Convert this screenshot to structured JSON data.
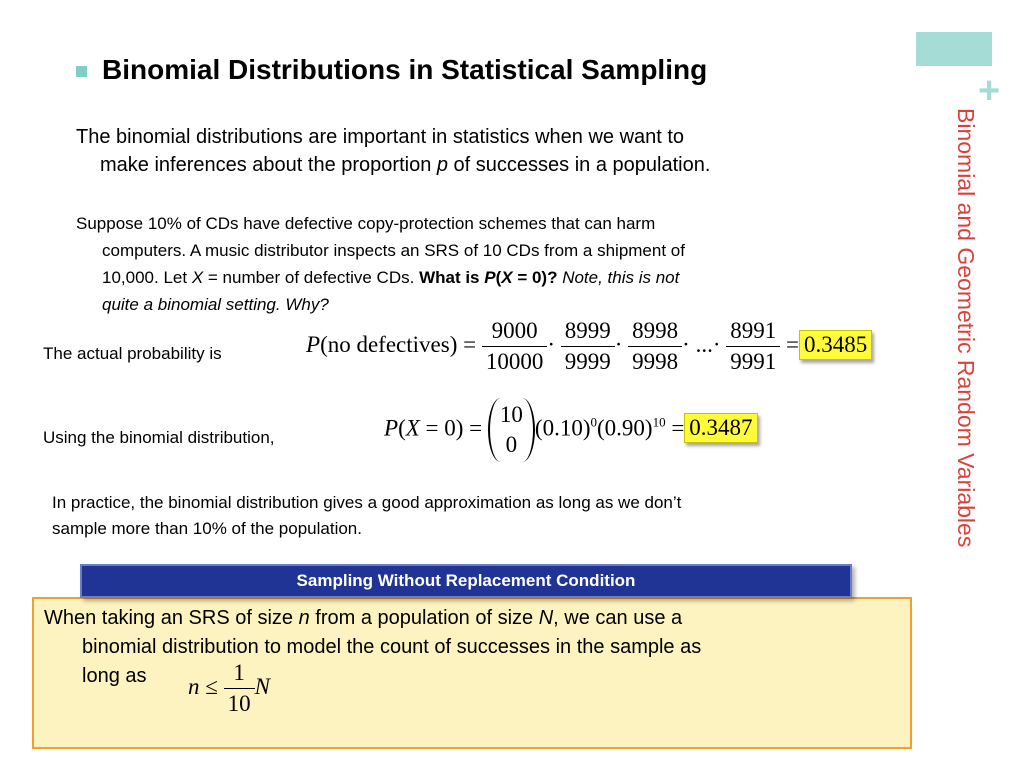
{
  "side_title": "Binomial and Geometric Random Variables",
  "heading": "Binomial Distributions in Statistical Sampling",
  "para1": {
    "line1": "The binomial distributions are important in statistics when we want to",
    "line2_pre": "make inferences about the proportion ",
    "line2_var": "p",
    "line2_post": " of successes in a population."
  },
  "para2": {
    "line1": "Suppose 10% of CDs have defective copy-protection schemes that can harm",
    "line2": "computers. A music distributor inspects an SRS of 10 CDs from a shipment of",
    "line3_pre": "10,000.  Let ",
    "line3_var": "X",
    "line3_post": " = number of defective CDs.  ",
    "question_bold": "What is ",
    "question_p": "P",
    "question_open": "(",
    "question_x": "X",
    "question_rest": " = 0)?",
    "note_line3": " Note, this is not",
    "note_line4": "quite a binomial setting.  Why?"
  },
  "actual_label": "The actual probability is",
  "eq1": {
    "lhs_p": "P",
    "lhs_rest": "(no defectives) =",
    "fracs": [
      {
        "num": "9000",
        "den": "10000"
      },
      {
        "num": "8999",
        "den": "9999"
      },
      {
        "num": "8998",
        "den": "9998"
      },
      {
        "num": "8991",
        "den": "9991"
      }
    ],
    "dot": "·",
    "ellipsis": "...·",
    "equals": "=",
    "result": "0.3485"
  },
  "binomial_label": "Using the binomial distribution,",
  "eq2": {
    "lhs_p": "P",
    "lhs_open": "(",
    "lhs_x": "X",
    "lhs_rest": " = 0) =",
    "binom_top": "10",
    "binom_bottom": "0",
    "term1": "(0.10)",
    "exp1": "0",
    "term2": "(0.90)",
    "exp2": "10",
    "equals": "=",
    "result": "0.3487"
  },
  "para3": {
    "line1": "In practice, the binomial distribution gives a good approximation as long as we don’t",
    "line2": "sample more than 10% of the population."
  },
  "condition": {
    "title": "Sampling Without Replacement Condition",
    "line1_pre": "When taking an SRS of size ",
    "line1_n": "n",
    "line1_mid": " from a population of size ",
    "line1_N": "N",
    "line1_post": ", we can use a",
    "line2": "binomial distribution to model the count of successes in the sample as",
    "line3": "long as",
    "ineq_n": "n",
    "ineq_le": " ≤ ",
    "frac_num": "1",
    "frac_den": "10",
    "ineq_N": "N"
  },
  "colors": {
    "accent_teal": "#a6dcd6",
    "side_title": "#d9423a",
    "highlight": "#fffb3a",
    "header_blue": "#1f3494",
    "box_fill": "#fcf3c0",
    "box_border": "#f0a030"
  }
}
